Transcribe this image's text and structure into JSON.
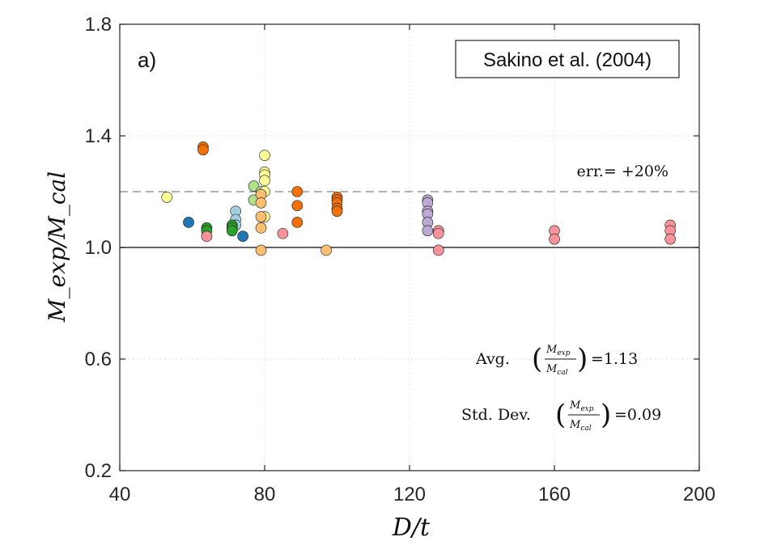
{
  "chart_data": {
    "type": "scatter",
    "panel_label": "a)",
    "legend_box": "Sakino et al. (2004)",
    "xlabel": "D/t",
    "ylabel": "M_exp/M_cal",
    "xlim": [
      40,
      200
    ],
    "ylim": [
      0.2,
      1.8
    ],
    "xticks": [
      40,
      80,
      120,
      160,
      200
    ],
    "yticks": [
      0.2,
      0.6,
      1.0,
      1.4,
      1.8
    ],
    "xtick_labels": [
      "40",
      "80",
      "120",
      "160",
      "200"
    ],
    "ytick_labels": [
      "0.2",
      "0.6",
      "1.0",
      "1.4",
      "1.8"
    ],
    "grid": true,
    "reference_lines": [
      {
        "y": 1.0,
        "style": "solid",
        "label": ""
      },
      {
        "y": 1.2,
        "style": "dashed",
        "label": "err.= +20%"
      }
    ],
    "stats": {
      "avg_label": "Avg.",
      "avg_frac_num": "M",
      "avg_frac_num_sub": "exp",
      "avg_frac_den": "M",
      "avg_frac_den_sub": "cal",
      "avg_value": "=1.13",
      "std_label": "Std. Dev.",
      "std_value": "=0.09"
    },
    "series": [
      {
        "color": "#1f77b4",
        "points": [
          [
            59,
            1.09
          ],
          [
            74,
            1.04
          ]
        ]
      },
      {
        "color": "#a6cee3",
        "points": [
          [
            72,
            1.13
          ],
          [
            72,
            1.1
          ],
          [
            72,
            1.08
          ]
        ]
      },
      {
        "color": "#2ca02c",
        "points": [
          [
            64,
            1.07
          ],
          [
            64,
            1.06
          ],
          [
            71,
            1.08
          ],
          [
            71,
            1.07
          ],
          [
            71,
            1.06
          ]
        ]
      },
      {
        "color": "#b2df8a",
        "points": [
          [
            77,
            1.22
          ],
          [
            77,
            1.17
          ],
          [
            79,
            1.2
          ]
        ]
      },
      {
        "color": "#fdfd96",
        "points": [
          [
            53,
            1.18
          ],
          [
            80,
            1.33
          ],
          [
            80,
            1.27
          ],
          [
            80,
            1.26
          ],
          [
            80,
            1.24
          ],
          [
            80,
            1.2
          ],
          [
            80,
            1.11
          ]
        ]
      },
      {
        "color": "#f0700a",
        "points": [
          [
            63,
            1.36
          ],
          [
            63,
            1.35
          ],
          [
            89,
            1.2
          ],
          [
            89,
            1.15
          ],
          [
            89,
            1.09
          ],
          [
            100,
            1.18
          ],
          [
            100,
            1.17
          ],
          [
            100,
            1.16
          ],
          [
            100,
            1.14
          ],
          [
            100,
            1.13
          ]
        ]
      },
      {
        "color": "#fdbf6f",
        "points": [
          [
            79,
            1.19
          ],
          [
            79,
            1.16
          ],
          [
            79,
            1.11
          ],
          [
            79,
            1.07
          ],
          [
            79,
            0.99
          ],
          [
            97,
            0.99
          ]
        ]
      },
      {
        "color": "#bcaad4",
        "points": [
          [
            125,
            1.17
          ],
          [
            125,
            1.16
          ],
          [
            125,
            1.13
          ],
          [
            125,
            1.12
          ],
          [
            125,
            1.09
          ],
          [
            125,
            1.06
          ]
        ]
      },
      {
        "color": "#f4939a",
        "points": [
          [
            64,
            1.04
          ],
          [
            85,
            1.05
          ],
          [
            128,
            1.06
          ],
          [
            128,
            1.05
          ],
          [
            128,
            0.99
          ],
          [
            160,
            1.06
          ],
          [
            160,
            1.03
          ],
          [
            192,
            1.08
          ],
          [
            192,
            1.06
          ],
          [
            192,
            1.03
          ]
        ]
      }
    ]
  }
}
